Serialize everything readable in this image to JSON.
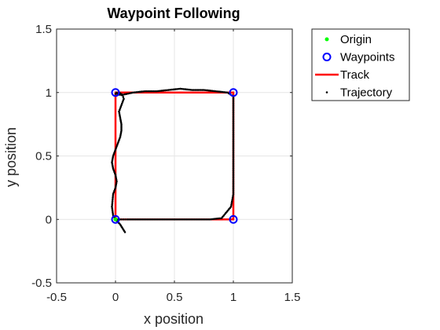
{
  "chart_data": {
    "type": "line",
    "title": "Waypoint Following",
    "xlabel": "x position",
    "ylabel": "y position",
    "xlim": [
      -0.5,
      1.5
    ],
    "ylim": [
      -0.5,
      1.5
    ],
    "xticks": [
      "-0.5",
      "0",
      "0.5",
      "1",
      "1.5"
    ],
    "yticks": [
      "-0.5",
      "0",
      "0.5",
      "1",
      "1.5"
    ],
    "grid": true,
    "legend_position": "outside-top-right",
    "series": [
      {
        "name": "Origin",
        "style": "point",
        "color": "#00ff00",
        "x": [
          0
        ],
        "y": [
          0
        ]
      },
      {
        "name": "Waypoints",
        "style": "circle",
        "color": "#0000ff",
        "x": [
          0,
          0,
          1,
          1
        ],
        "y": [
          0,
          1,
          1,
          0
        ]
      },
      {
        "name": "Track",
        "style": "line",
        "color": "#ff0000",
        "x": [
          0,
          0,
          1,
          1,
          0
        ],
        "y": [
          0,
          1,
          1,
          0,
          0
        ]
      },
      {
        "name": "Trajectory",
        "style": "dots",
        "color": "#000000",
        "x": [
          0.08,
          0.06,
          0.04,
          0.02,
          0.0,
          -0.02,
          -0.03,
          -0.02,
          0.0,
          0.01,
          0.0,
          -0.02,
          -0.03,
          -0.02,
          0.0,
          0.02,
          0.04,
          0.05,
          0.05,
          0.04,
          0.03,
          0.05,
          0.07,
          0.06,
          0.03,
          0.01,
          0.0,
          0.05,
          0.15,
          0.25,
          0.35,
          0.45,
          0.55,
          0.65,
          0.75,
          0.85,
          0.95,
          1.0,
          1.0,
          1.0,
          1.0,
          1.0,
          1.0,
          1.0,
          1.0,
          1.0,
          0.98,
          0.9,
          0.8,
          0.7,
          0.6,
          0.5,
          0.4,
          0.3,
          0.2,
          0.1,
          0.05,
          0.02,
          0.0
        ],
        "y": [
          -0.1,
          -0.07,
          -0.04,
          -0.02,
          0.0,
          0.03,
          0.1,
          0.2,
          0.25,
          0.3,
          0.35,
          0.4,
          0.45,
          0.5,
          0.55,
          0.6,
          0.65,
          0.7,
          0.75,
          0.8,
          0.85,
          0.9,
          0.95,
          0.98,
          1.0,
          1.0,
          0.99,
          0.98,
          1.0,
          1.01,
          1.01,
          1.02,
          1.03,
          1.02,
          1.02,
          1.01,
          1.0,
          0.97,
          0.9,
          0.8,
          0.7,
          0.6,
          0.5,
          0.4,
          0.3,
          0.2,
          0.1,
          0.01,
          0.0,
          0.0,
          0.0,
          0.0,
          0.0,
          0.0,
          0.0,
          0.0,
          0.0,
          0.0,
          0.0
        ]
      }
    ]
  }
}
